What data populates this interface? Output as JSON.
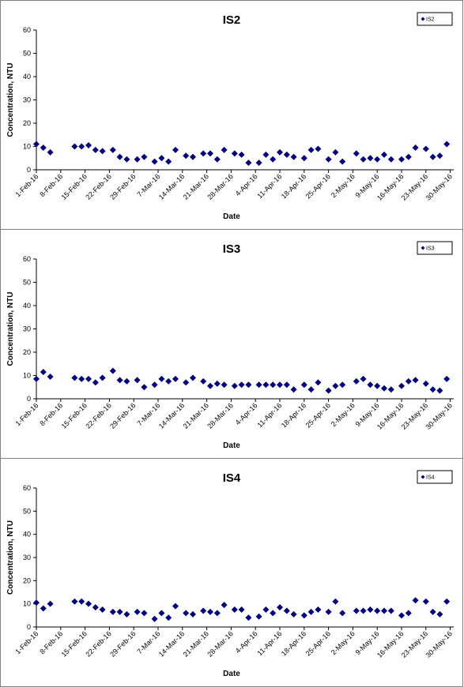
{
  "colors": {
    "marker": "#000080",
    "axis": "#000000",
    "frame": "#7f7f7f"
  },
  "chart_data": [
    {
      "type": "scatter",
      "title": "IS2",
      "xlabel": "Date",
      "ylabel": "Concentration, NTU",
      "legend": {
        "entries": [
          "IS2"
        ],
        "placement": "top-right"
      },
      "grid": false,
      "xlim": [
        "2016-02-01",
        "2016-05-31"
      ],
      "ylim": [
        0,
        60
      ],
      "y_ticks": [
        0,
        10,
        20,
        30,
        40,
        50,
        60
      ],
      "x_tick_labels": [
        "1-Feb-16",
        "8-Feb-16",
        "15-Feb-16",
        "22-Feb-16",
        "29-Feb-16",
        "7-Mar-16",
        "14-Mar-16",
        "21-Mar-16",
        "28-Mar-16",
        "4-Apr-16",
        "11-Apr-16",
        "18-Apr-16",
        "25-Apr-16",
        "2-May-16",
        "9-May-16",
        "16-May-16",
        "23-May-16",
        "30-May-16"
      ],
      "x_tick_dates": [
        "2016-02-01",
        "2016-02-08",
        "2016-02-15",
        "2016-02-22",
        "2016-02-29",
        "2016-03-07",
        "2016-03-14",
        "2016-03-21",
        "2016-03-28",
        "2016-04-04",
        "2016-04-11",
        "2016-04-18",
        "2016-04-25",
        "2016-05-02",
        "2016-05-09",
        "2016-05-16",
        "2016-05-23",
        "2016-05-30"
      ],
      "series": [
        {
          "name": "IS2",
          "x": [
            "2016-02-01",
            "2016-02-03",
            "2016-02-05",
            "2016-02-12",
            "2016-02-14",
            "2016-02-16",
            "2016-02-18",
            "2016-02-20",
            "2016-02-23",
            "2016-02-25",
            "2016-02-27",
            "2016-03-01",
            "2016-03-03",
            "2016-03-06",
            "2016-03-08",
            "2016-03-10",
            "2016-03-12",
            "2016-03-15",
            "2016-03-17",
            "2016-03-20",
            "2016-03-22",
            "2016-03-24",
            "2016-03-26",
            "2016-03-29",
            "2016-03-31",
            "2016-04-02",
            "2016-04-05",
            "2016-04-07",
            "2016-04-09",
            "2016-04-11",
            "2016-04-13",
            "2016-04-15",
            "2016-04-18",
            "2016-04-20",
            "2016-04-22",
            "2016-04-25",
            "2016-04-27",
            "2016-04-29",
            "2016-05-03",
            "2016-05-05",
            "2016-05-07",
            "2016-05-09",
            "2016-05-11",
            "2016-05-13",
            "2016-05-16",
            "2016-05-18",
            "2016-05-20",
            "2016-05-23",
            "2016-05-25",
            "2016-05-27",
            "2016-05-29"
          ],
          "y": [
            11,
            9.5,
            7.5,
            10,
            10,
            10.5,
            8.5,
            8,
            8.5,
            5.5,
            4.5,
            4.5,
            5.5,
            3.5,
            5,
            3.5,
            8.5,
            6,
            5.5,
            7,
            7,
            4.5,
            8.5,
            7,
            6.5,
            3,
            3,
            6.5,
            4.5,
            7.5,
            6.5,
            5.5,
            5,
            8.5,
            9,
            4.5,
            7.5,
            3.5,
            7,
            4.5,
            5,
            4.5,
            6.5,
            4.5,
            4.5,
            5.5,
            9.5,
            9,
            5.5,
            6,
            11
          ]
        }
      ]
    },
    {
      "type": "scatter",
      "title": "IS3",
      "xlabel": "Date",
      "ylabel": "Concentration, NTU",
      "legend": {
        "entries": [
          "IS3"
        ],
        "placement": "top-right"
      },
      "grid": false,
      "xlim": [
        "2016-02-01",
        "2016-05-31"
      ],
      "ylim": [
        0,
        60
      ],
      "y_ticks": [
        0,
        10,
        20,
        30,
        40,
        50,
        60
      ],
      "x_tick_labels": [
        "1-Feb-16",
        "8-Feb-16",
        "15-Feb-16",
        "22-Feb-16",
        "29-Feb-16",
        "7-Mar-16",
        "14-Mar-16",
        "21-Mar-16",
        "28-Mar-16",
        "4-Apr-16",
        "11-Apr-16",
        "18-Apr-16",
        "25-Apr-16",
        "2-May-16",
        "9-May-16",
        "16-May-16",
        "23-May-16",
        "30-May-16"
      ],
      "x_tick_dates": [
        "2016-02-01",
        "2016-02-08",
        "2016-02-15",
        "2016-02-22",
        "2016-02-29",
        "2016-03-07",
        "2016-03-14",
        "2016-03-21",
        "2016-03-28",
        "2016-04-04",
        "2016-04-11",
        "2016-04-18",
        "2016-04-25",
        "2016-05-02",
        "2016-05-09",
        "2016-05-16",
        "2016-05-23",
        "2016-05-30"
      ],
      "series": [
        {
          "name": "IS3",
          "x": [
            "2016-02-01",
            "2016-02-03",
            "2016-02-05",
            "2016-02-12",
            "2016-02-14",
            "2016-02-16",
            "2016-02-18",
            "2016-02-20",
            "2016-02-23",
            "2016-02-25",
            "2016-02-27",
            "2016-03-01",
            "2016-03-03",
            "2016-03-06",
            "2016-03-08",
            "2016-03-10",
            "2016-03-12",
            "2016-03-15",
            "2016-03-17",
            "2016-03-20",
            "2016-03-22",
            "2016-03-24",
            "2016-03-26",
            "2016-03-29",
            "2016-03-31",
            "2016-04-02",
            "2016-04-05",
            "2016-04-07",
            "2016-04-09",
            "2016-04-11",
            "2016-04-13",
            "2016-04-15",
            "2016-04-18",
            "2016-04-20",
            "2016-04-22",
            "2016-04-25",
            "2016-04-27",
            "2016-04-29",
            "2016-05-03",
            "2016-05-05",
            "2016-05-07",
            "2016-05-09",
            "2016-05-11",
            "2016-05-13",
            "2016-05-16",
            "2016-05-18",
            "2016-05-20",
            "2016-05-23",
            "2016-05-25",
            "2016-05-27",
            "2016-05-29"
          ],
          "y": [
            8.5,
            11.5,
            9.5,
            9,
            8.5,
            8.5,
            7,
            9,
            12,
            8,
            7.5,
            8,
            5,
            6,
            8.5,
            7.5,
            8.5,
            7,
            9,
            7.5,
            5.5,
            6.5,
            6,
            5.5,
            6,
            6,
            6,
            6,
            6,
            6,
            6,
            4,
            6,
            4,
            7,
            3.5,
            5.5,
            6,
            7.5,
            8.5,
            6,
            5.5,
            4.5,
            4,
            5.5,
            7.5,
            8,
            6.5,
            4,
            3.5,
            8.5
          ]
        }
      ]
    },
    {
      "type": "scatter",
      "title": "IS4",
      "xlabel": "Date",
      "ylabel": "Concentration, NTU",
      "legend": {
        "entries": [
          "IS4"
        ],
        "placement": "top-right"
      },
      "grid": false,
      "xlim": [
        "2016-02-01",
        "2016-05-31"
      ],
      "ylim": [
        0,
        60
      ],
      "y_ticks": [
        0,
        10,
        20,
        30,
        40,
        50,
        60
      ],
      "x_tick_labels": [
        "1-Feb-16",
        "8-Feb-16",
        "15-Feb-16",
        "22-Feb-16",
        "29-Feb-16",
        "7-Mar-16",
        "14-Mar-16",
        "21-Mar-16",
        "28-Mar-16",
        "4-Apr-16",
        "11-Apr-16",
        "18-Apr-16",
        "25-Apr-16",
        "2-May-16",
        "9-May-16",
        "16-May-16",
        "23-May-16",
        "30-May-16"
      ],
      "x_tick_dates": [
        "2016-02-01",
        "2016-02-08",
        "2016-02-15",
        "2016-02-22",
        "2016-02-29",
        "2016-03-07",
        "2016-03-14",
        "2016-03-21",
        "2016-03-28",
        "2016-04-04",
        "2016-04-11",
        "2016-04-18",
        "2016-04-25",
        "2016-05-02",
        "2016-05-09",
        "2016-05-16",
        "2016-05-23",
        "2016-05-30"
      ],
      "series": [
        {
          "name": "IS4",
          "x": [
            "2016-02-01",
            "2016-02-03",
            "2016-02-05",
            "2016-02-12",
            "2016-02-14",
            "2016-02-16",
            "2016-02-18",
            "2016-02-20",
            "2016-02-23",
            "2016-02-25",
            "2016-02-27",
            "2016-03-01",
            "2016-03-03",
            "2016-03-06",
            "2016-03-08",
            "2016-03-10",
            "2016-03-12",
            "2016-03-15",
            "2016-03-17",
            "2016-03-20",
            "2016-03-22",
            "2016-03-24",
            "2016-03-26",
            "2016-03-29",
            "2016-03-31",
            "2016-04-02",
            "2016-04-05",
            "2016-04-07",
            "2016-04-09",
            "2016-04-11",
            "2016-04-13",
            "2016-04-15",
            "2016-04-18",
            "2016-04-20",
            "2016-04-22",
            "2016-04-25",
            "2016-04-27",
            "2016-04-29",
            "2016-05-03",
            "2016-05-05",
            "2016-05-07",
            "2016-05-09",
            "2016-05-11",
            "2016-05-13",
            "2016-05-16",
            "2016-05-18",
            "2016-05-20",
            "2016-05-23",
            "2016-05-25",
            "2016-05-27",
            "2016-05-29"
          ],
          "y": [
            10.5,
            8,
            10,
            11,
            11,
            10,
            8.5,
            7.5,
            6.5,
            6.5,
            5.5,
            6.5,
            6,
            3.5,
            6,
            4,
            9,
            6,
            5.5,
            7,
            6.5,
            6,
            9.5,
            7.5,
            7.5,
            4,
            4.5,
            7.5,
            6,
            8.5,
            7,
            5.5,
            5,
            6.5,
            7.5,
            6.5,
            11,
            6,
            7,
            7,
            7.5,
            7,
            7,
            7,
            5,
            6,
            11.5,
            11,
            6.5,
            5.5,
            11
          ]
        }
      ]
    }
  ]
}
